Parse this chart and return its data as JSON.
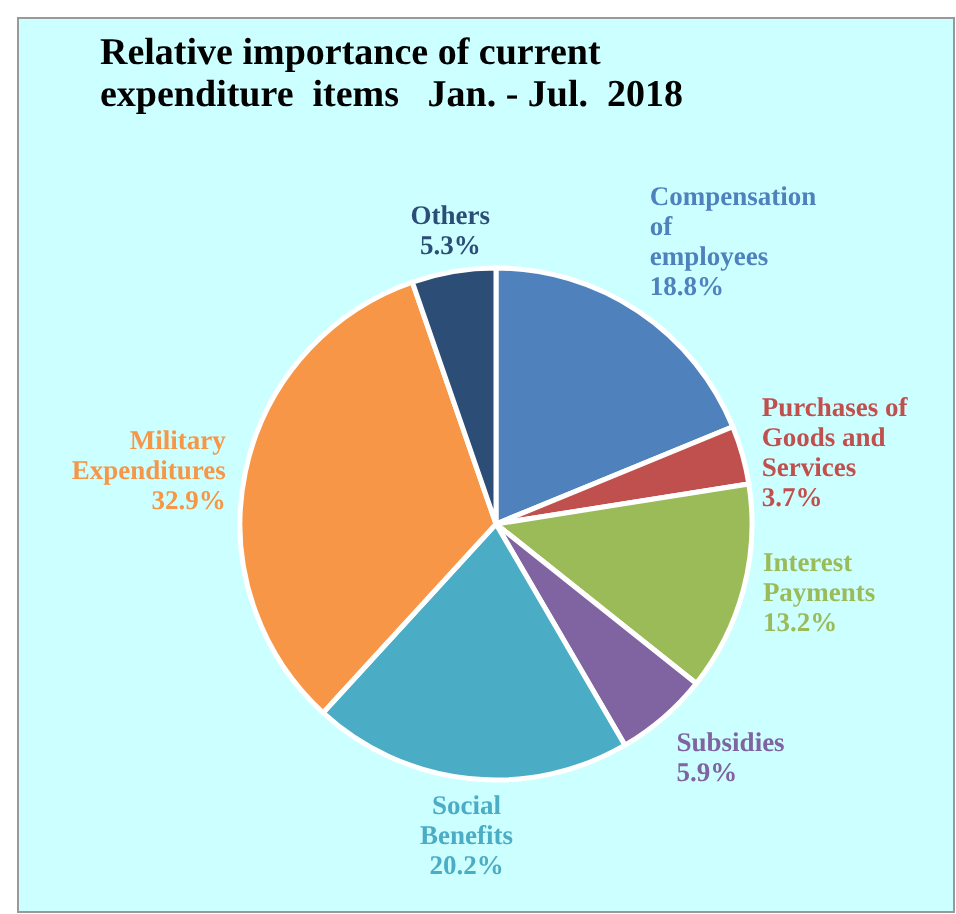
{
  "chart_data": {
    "type": "pie",
    "title": "Relative importance of current\nexpenditure  items   Jan. - Jul.  2018",
    "categories": [
      "Compensation\nof\nemployees",
      "Purchases of\nGoods and\nServices",
      "Interest\nPayments",
      "Subsidies",
      "Social\nBenefits",
      "Military\nExpenditures",
      "Others"
    ],
    "values": [
      18.8,
      3.7,
      13.2,
      5.9,
      20.2,
      32.9,
      5.3
    ],
    "value_labels": [
      "18.8%",
      "3.7%",
      "13.2%",
      "5.9%",
      "20.2%",
      "32.9%",
      "5.3%"
    ],
    "colors": [
      "#4f81bd",
      "#c0504d",
      "#9bbb59",
      "#8064a2",
      "#4bacc6",
      "#f79646",
      "#2c4d75"
    ]
  }
}
